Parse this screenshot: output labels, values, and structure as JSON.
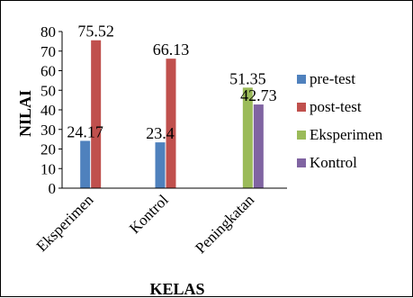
{
  "chart_data": {
    "type": "bar",
    "title": "",
    "xlabel": "KELAS",
    "ylabel": "NILAI",
    "ylim": [
      0,
      80
    ],
    "yticks": [
      0,
      10,
      20,
      30,
      40,
      50,
      60,
      70,
      80
    ],
    "grid": false,
    "legend_position": "right",
    "categories": [
      "Eksperimen",
      "Kontrol",
      "Peningkatan"
    ],
    "series": [
      {
        "name": "pre-test",
        "color": "#4F81BD",
        "values": [
          24.17,
          23.4,
          null
        ],
        "labels": [
          "24.17",
          "23.4",
          ""
        ]
      },
      {
        "name": "post-test",
        "color": "#C0504D",
        "values": [
          75.52,
          66.13,
          null
        ],
        "labels": [
          "75.52",
          "66.13",
          ""
        ]
      },
      {
        "name": "Eksperimen",
        "color": "#9BBB59",
        "values": [
          null,
          null,
          51.35
        ],
        "labels": [
          "",
          "",
          "51.35"
        ]
      },
      {
        "name": "Kontrol",
        "color": "#8064A2",
        "values": [
          null,
          null,
          42.73
        ],
        "labels": [
          "",
          "",
          "42.73"
        ]
      }
    ]
  }
}
